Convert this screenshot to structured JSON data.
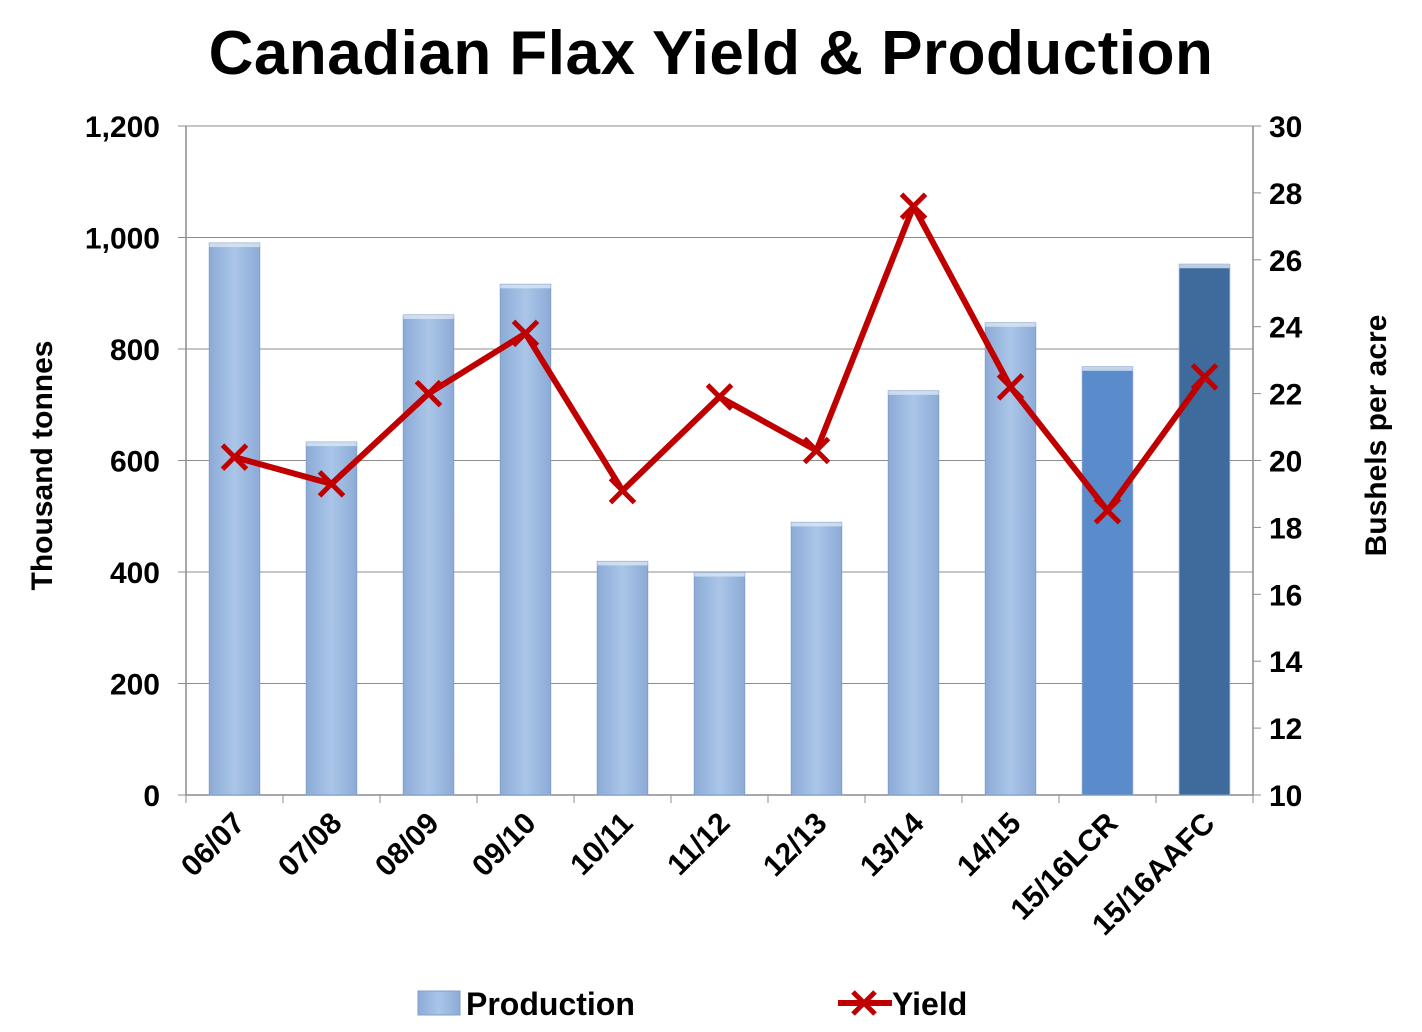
{
  "chart_data": {
    "type": "bar+line",
    "title": "Canadian Flax Yield & Production",
    "categories": [
      "06/07",
      "07/08",
      "08/09",
      "09/10",
      "10/11",
      "11/12",
      "12/13",
      "13/14",
      "14/15",
      "15/16LCR",
      "15/16AAFC"
    ],
    "series": [
      {
        "name": "Production",
        "type": "bar",
        "axis": "left",
        "values": [
          990,
          633,
          861,
          916,
          419,
          399,
          489,
          725,
          847,
          768,
          952
        ],
        "colors": [
          "#a0bde3",
          "#a0bde3",
          "#a0bde3",
          "#a0bde3",
          "#a0bde3",
          "#a0bde3",
          "#a0bde3",
          "#a0bde3",
          "#a0bde3",
          "#5a8ccb",
          "#3e6a9c"
        ]
      },
      {
        "name": "Yield",
        "type": "line",
        "axis": "right",
        "marker": "x",
        "color": "#c00000",
        "values": [
          20.1,
          19.3,
          22.0,
          23.8,
          19.1,
          21.9,
          20.3,
          27.6,
          22.2,
          18.5,
          22.5
        ]
      }
    ],
    "y_left": {
      "label": "Thousand tonnes",
      "min": 0,
      "max": 1200,
      "step": 200,
      "tick_labels": [
        "0",
        "200",
        "400",
        "600",
        "800",
        "1,000",
        "1,200"
      ]
    },
    "y_right": {
      "label": "Bushels per acre",
      "min": 10,
      "max": 30,
      "step": 2,
      "tick_labels": [
        "10",
        "12",
        "14",
        "16",
        "18",
        "20",
        "22",
        "24",
        "26",
        "28",
        "30"
      ]
    },
    "grid": true,
    "legend_position": "bottom"
  }
}
